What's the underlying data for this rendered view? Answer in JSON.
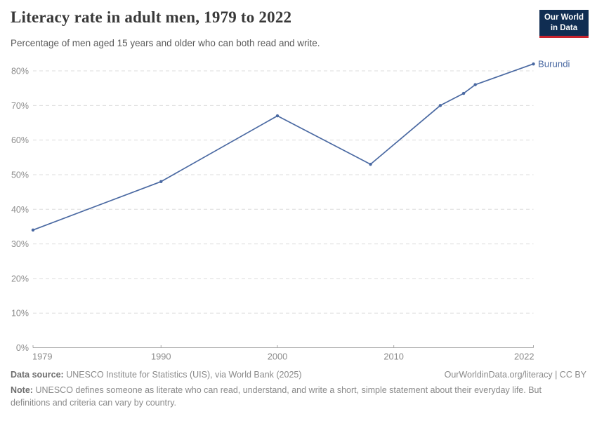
{
  "header": {
    "title": "Literacy rate in adult men, 1979 to 2022",
    "subtitle": "Percentage of men aged 15 years and older who can both read and write.",
    "logo": {
      "line1": "Our World",
      "line2": "in Data",
      "bg_color": "#102d52",
      "bar_color": "#c8232d",
      "text_color": "#ffffff"
    }
  },
  "chart_data": {
    "type": "line",
    "title": "Literacy rate in adult men, 1979 to 2022",
    "series": [
      {
        "name": "Burundi",
        "x": [
          1979,
          1990,
          2000,
          2008,
          2014,
          2016,
          2017,
          2022
        ],
        "values": [
          34,
          48,
          67,
          53,
          70,
          73.5,
          76,
          82
        ],
        "color": "#4a69a2"
      }
    ],
    "xlabel": "",
    "ylabel": "",
    "xlim": [
      1979,
      2022
    ],
    "ylim": [
      0,
      80
    ],
    "x_ticks": [
      1979,
      1990,
      2000,
      2010,
      2022
    ],
    "y_ticks": [
      0,
      10,
      20,
      30,
      40,
      50,
      60,
      70,
      80
    ],
    "y_tick_suffix": "%",
    "grid": "horizontal-dashed",
    "grid_color": "#dcdcdc",
    "axis_color": "#a8a8a8",
    "tick_label_color": "#8c8c8c",
    "legend_position": "end-of-line-label",
    "end_label": "Burundi"
  },
  "footer": {
    "source_label": "Data source:",
    "source_text": "UNESCO Institute for Statistics (UIS), via World Bank (2025)",
    "link": "OurWorldinData.org/literacy | CC BY",
    "note_label": "Note:",
    "note_text": "UNESCO defines someone as literate who can read, understand, and write a short, simple statement about their everyday life. But definitions and criteria can vary by country."
  }
}
